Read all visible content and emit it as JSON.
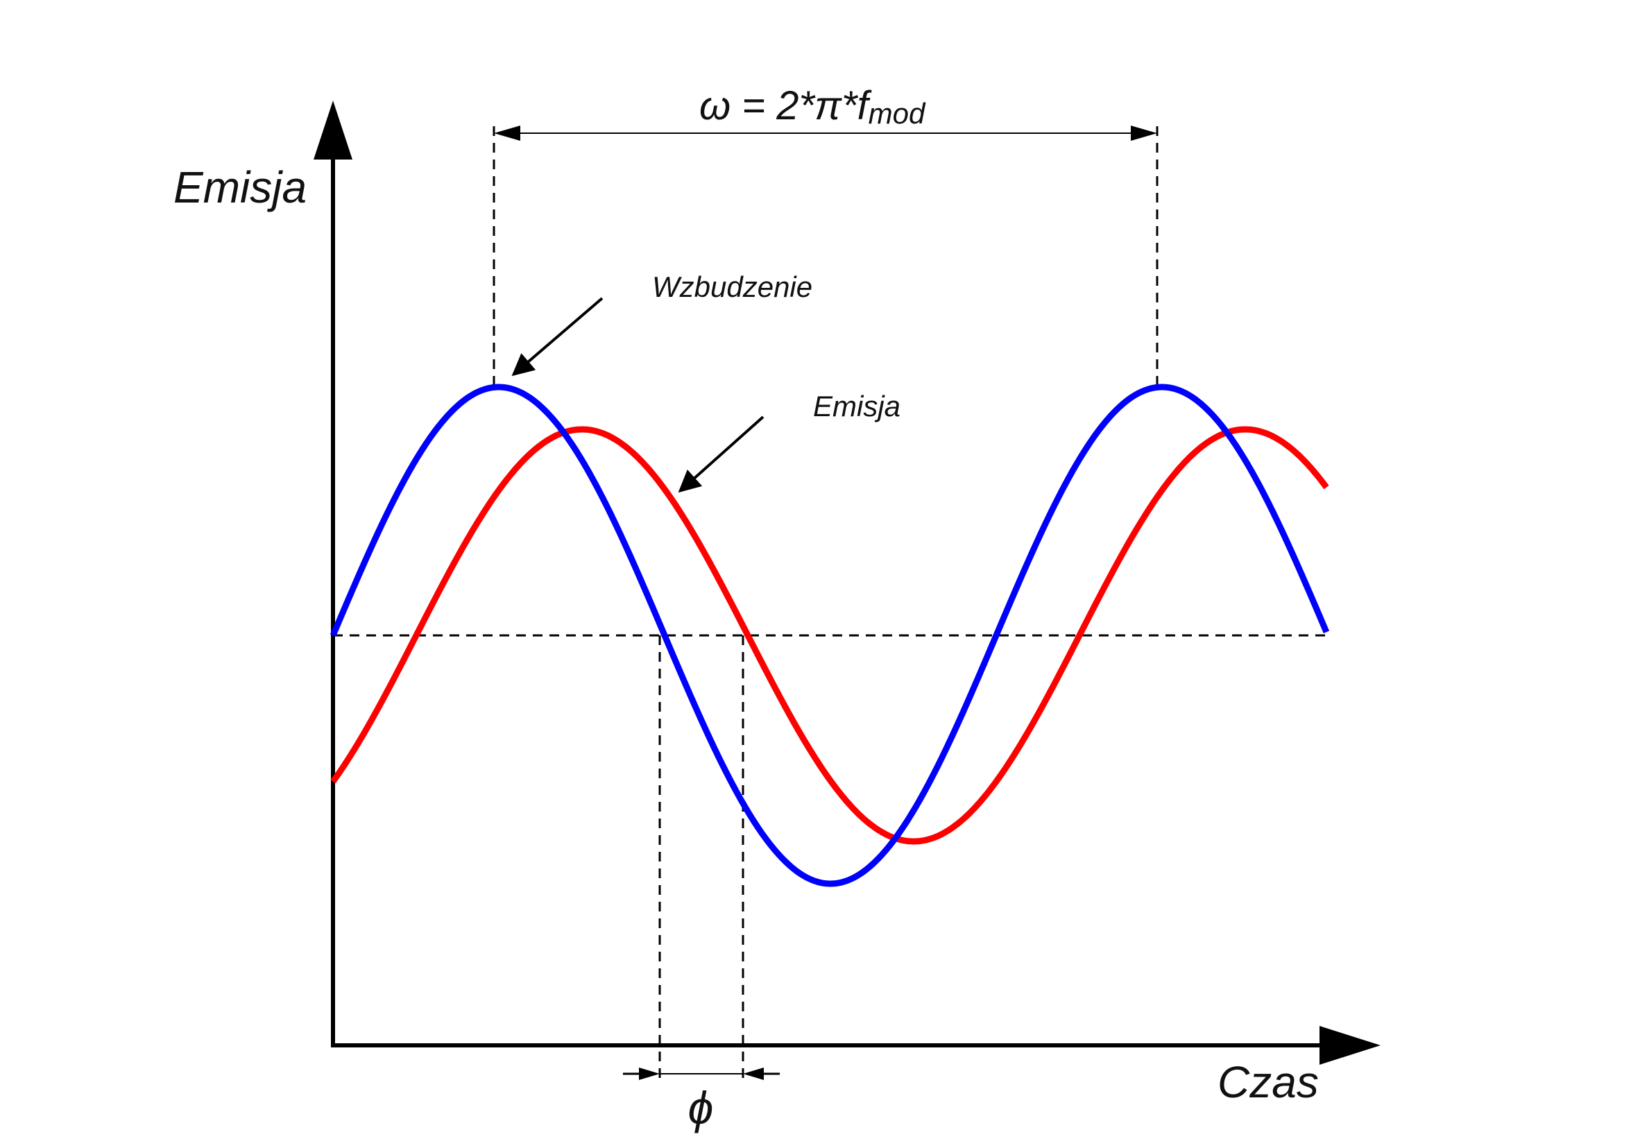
{
  "diagram": {
    "y_axis_label": "Emisja",
    "x_axis_label": "Czas",
    "excitation_label": "Wzbudzenie",
    "emission_label": "Emisja",
    "omega_formula": {
      "main": "ω = 2*π*f",
      "subscript": "mod"
    },
    "phase_label": "ϕ",
    "colors": {
      "excitation": "#0000ff",
      "emission": "#ff0000",
      "axes": "#000000"
    }
  }
}
